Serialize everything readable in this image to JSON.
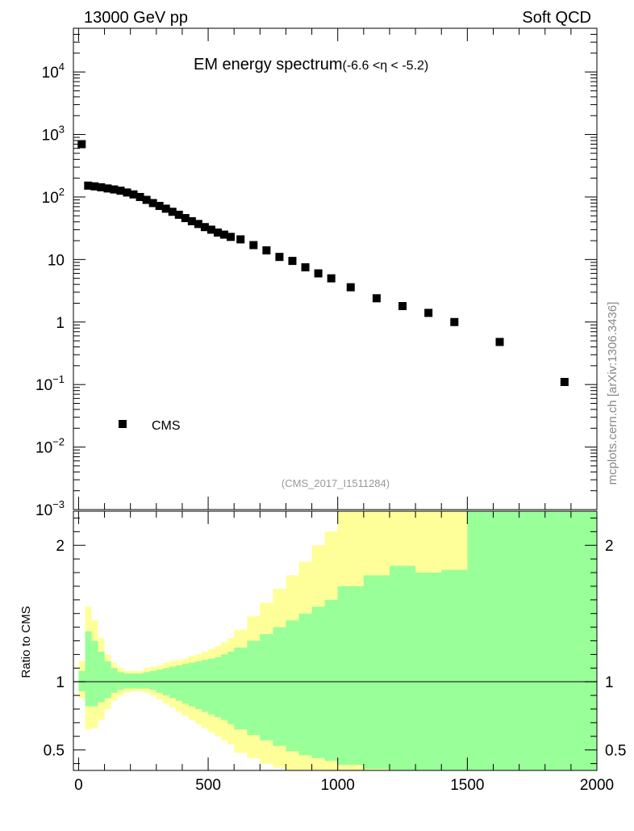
{
  "header": {
    "left": "13000 GeV pp",
    "right": "Soft QCD",
    "side_label": "mcplots.cern.ch [arXiv:1306.3436]"
  },
  "colors": {
    "marker": "#000000",
    "band_outer": "#ffff99",
    "band_inner": "#99ff99",
    "axis": "#000000",
    "watermark": "#999999"
  },
  "chart_data": [
    {
      "type": "scatter",
      "title": "EM energy spectrum",
      "title_suffix": "(-6.6 <η < -5.2)",
      "watermark": "(CMS_2017_I1511284)",
      "yscale": "log",
      "xlim": [
        -20,
        2000
      ],
      "ylim": [
        0.001,
        50000
      ],
      "ytick_labels": [
        {
          "value": 0.001,
          "base": "10",
          "exp": "−3"
        },
        {
          "value": 0.01,
          "base": "10",
          "exp": "−2"
        },
        {
          "value": 0.1,
          "base": "10",
          "exp": "−1"
        },
        {
          "value": 1,
          "base": "1",
          "exp": ""
        },
        {
          "value": 10,
          "base": "10",
          "exp": ""
        },
        {
          "value": 100,
          "base": "10",
          "exp": "2"
        },
        {
          "value": 1000,
          "base": "10",
          "exp": "3"
        },
        {
          "value": 10000,
          "base": "10",
          "exp": "4"
        }
      ],
      "legend": [
        {
          "name": "CMS",
          "marker": "square"
        }
      ],
      "legend_position": "lower-left",
      "series": [
        {
          "name": "CMS",
          "x": [
            12,
            37,
            62,
            87,
            112,
            137,
            162,
            187,
            212,
            237,
            262,
            287,
            312,
            337,
            362,
            387,
            412,
            437,
            462,
            487,
            512,
            537,
            562,
            587,
            625,
            675,
            725,
            775,
            825,
            875,
            925,
            975,
            1050,
            1150,
            1250,
            1350,
            1450,
            1625,
            1875
          ],
          "y": [
            700,
            152,
            148,
            143,
            137,
            132,
            126,
            118,
            110,
            100,
            90,
            80,
            72,
            65,
            58,
            52,
            46,
            41,
            37,
            33,
            30,
            27,
            25,
            23,
            21,
            17,
            14,
            11,
            9.5,
            7.5,
            6,
            5,
            3.6,
            2.4,
            1.8,
            1.4,
            1.0,
            0.48,
            0.11
          ]
        }
      ]
    },
    {
      "type": "area",
      "ylabel": "Ratio to CMS",
      "xlim": [
        -20,
        2000
      ],
      "ylim": [
        0.35,
        2.25
      ],
      "xticks": [
        0,
        500,
        1000,
        1500,
        2000
      ],
      "xtick_labels": [
        "0",
        "500",
        "1000",
        "1500",
        "2000"
      ],
      "yticks": [
        0.5,
        1,
        2
      ],
      "ytick_labels": [
        "0.5",
        "1",
        "2"
      ],
      "reference_line": 1,
      "bin_edges": [
        0,
        25,
        50,
        75,
        100,
        125,
        150,
        175,
        200,
        225,
        250,
        275,
        300,
        325,
        350,
        375,
        400,
        425,
        450,
        475,
        500,
        525,
        550,
        575,
        600,
        650,
        700,
        750,
        800,
        850,
        900,
        950,
        1000,
        1100,
        1200,
        1300,
        1400,
        1500,
        1750,
        2000
      ],
      "series": [
        {
          "name": "outer band",
          "upper": [
            1.15,
            1.55,
            1.45,
            1.32,
            1.2,
            1.14,
            1.1,
            1.08,
            1.08,
            1.08,
            1.1,
            1.11,
            1.12,
            1.14,
            1.15,
            1.16,
            1.17,
            1.19,
            1.2,
            1.22,
            1.24,
            1.26,
            1.29,
            1.32,
            1.38,
            1.48,
            1.58,
            1.68,
            1.78,
            1.88,
            2.0,
            2.1,
            2.3,
            2.3,
            2.3,
            2.3,
            2.3,
            2.3,
            2.3
          ],
          "lower": [
            0.88,
            0.65,
            0.66,
            0.72,
            0.8,
            0.86,
            0.9,
            0.92,
            0.93,
            0.93,
            0.92,
            0.9,
            0.87,
            0.84,
            0.81,
            0.78,
            0.75,
            0.72,
            0.69,
            0.66,
            0.63,
            0.6,
            0.57,
            0.54,
            0.48,
            0.44,
            0.4,
            0.37,
            0.35,
            0.34,
            0.34,
            0.34,
            0.34,
            0.34,
            0.34,
            0.34,
            0.34,
            0.34,
            0.34
          ]
        },
        {
          "name": "inner band",
          "upper": [
            1.08,
            1.37,
            1.3,
            1.22,
            1.15,
            1.1,
            1.07,
            1.06,
            1.06,
            1.06,
            1.07,
            1.08,
            1.09,
            1.1,
            1.11,
            1.12,
            1.13,
            1.14,
            1.15,
            1.16,
            1.17,
            1.18,
            1.2,
            1.22,
            1.25,
            1.3,
            1.35,
            1.4,
            1.45,
            1.5,
            1.55,
            1.6,
            1.7,
            1.78,
            1.85,
            1.8,
            1.82,
            2.3,
            2.3
          ],
          "lower": [
            0.93,
            0.82,
            0.82,
            0.85,
            0.88,
            0.92,
            0.94,
            0.95,
            0.95,
            0.95,
            0.95,
            0.94,
            0.92,
            0.9,
            0.88,
            0.86,
            0.84,
            0.82,
            0.8,
            0.78,
            0.76,
            0.74,
            0.72,
            0.69,
            0.65,
            0.61,
            0.57,
            0.53,
            0.49,
            0.46,
            0.44,
            0.42,
            0.39,
            0.36,
            0.34,
            0.34,
            0.34,
            0.34,
            0.34
          ]
        }
      ]
    }
  ]
}
